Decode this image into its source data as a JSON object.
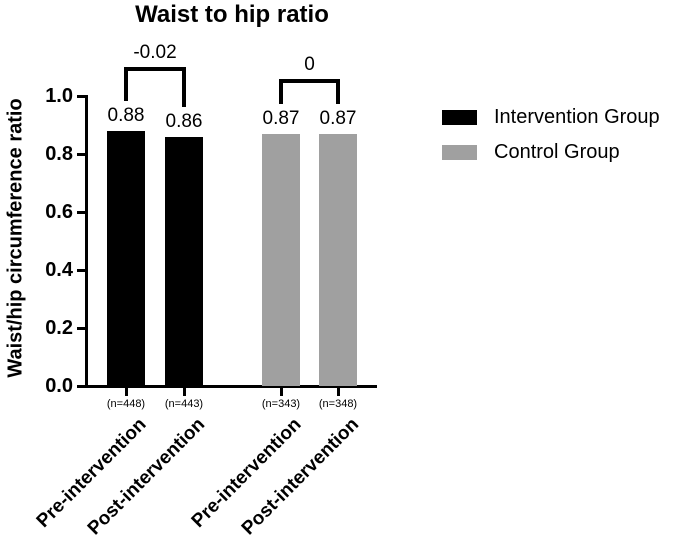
{
  "chart_data": {
    "type": "bar",
    "title": "Waist to hip ratio",
    "ylabel": "Waist/hip circumference ratio",
    "xlabel": "",
    "ylim": [
      0.0,
      1.0
    ],
    "yticks": [
      "0.0",
      "0.2",
      "0.4",
      "0.6",
      "0.8",
      "1.0"
    ],
    "grid": false,
    "legend_position": "right",
    "categories": [
      "Pre-intervention",
      "Post-intervention",
      "Pre-intervention",
      "Post-intervention"
    ],
    "bars": [
      {
        "category": "Pre-intervention",
        "group": "Intervention Group",
        "value": 0.88,
        "value_label": "0.88",
        "n_label": "(n=448)"
      },
      {
        "category": "Post-intervention",
        "group": "Intervention Group",
        "value": 0.86,
        "value_label": "0.86",
        "n_label": "(n=443)"
      },
      {
        "category": "Pre-intervention",
        "group": "Control Group",
        "value": 0.87,
        "value_label": "0.87",
        "n_label": "(n=343)"
      },
      {
        "category": "Post-intervention",
        "group": "Control Group",
        "value": 0.87,
        "value_label": "0.87",
        "n_label": "(n=348)"
      }
    ],
    "comparisons": [
      {
        "label": "-0.02",
        "between": [
          0,
          1
        ]
      },
      {
        "label": "0",
        "between": [
          2,
          3
        ]
      }
    ],
    "legend": [
      {
        "label": "Intervention Group",
        "color": "#000000"
      },
      {
        "label": "Control Group",
        "color": "#a0a0a0"
      }
    ],
    "colors": {
      "axis": "#000000",
      "background": "#ffffff"
    }
  }
}
